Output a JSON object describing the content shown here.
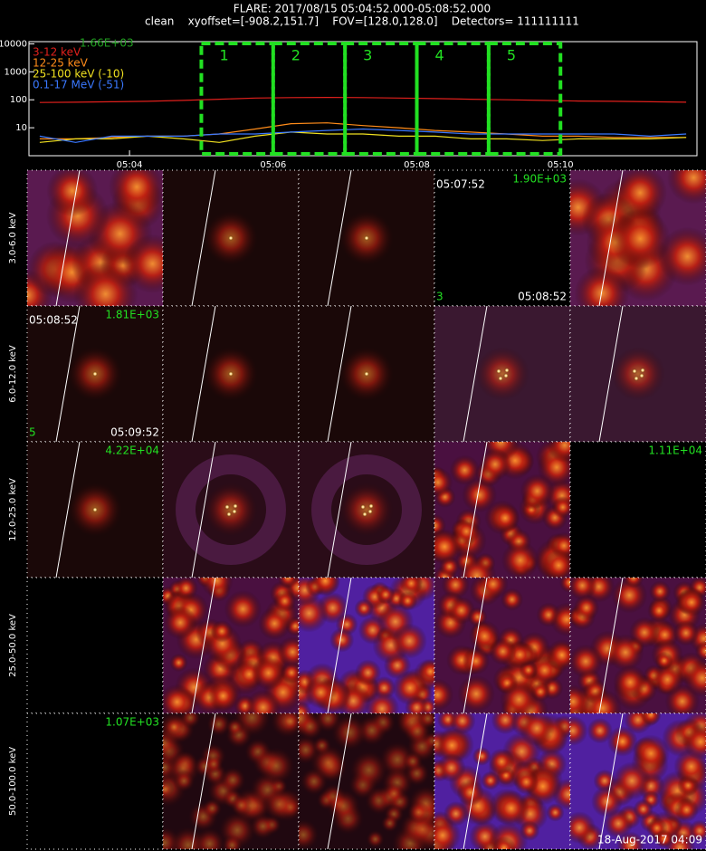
{
  "header": {
    "title": "FLARE: 2017/08/15 05:04:52.000-05:08:52.000",
    "subtitle": "clean    xyoffset=[-908.2,151.7]    FOV=[128.0,128.0]    Detectors= 111111111"
  },
  "chart_data": {
    "type": "line",
    "annotation": "1.66E+03",
    "log_scale": true,
    "x": [
      2.75,
      3.25,
      3.75,
      4.25,
      4.75,
      5.25,
      5.75,
      6.25,
      6.75,
      7.25,
      7.75,
      8.25,
      8.75,
      9.25,
      9.75,
      10.25,
      10.75,
      11.25,
      11.75
    ],
    "series": [
      {
        "name": "3-12 keV",
        "color": "#e0201c",
        "values": [
          80,
          82,
          85,
          88,
          95,
          105,
          115,
          120,
          122,
          120,
          115,
          110,
          105,
          100,
          95,
          90,
          88,
          85,
          82
        ]
      },
      {
        "name": "12-25 keV",
        "color": "#ff8c1a",
        "values": [
          4,
          4,
          4.5,
          5,
          5,
          6,
          9,
          14,
          15,
          12,
          10,
          8,
          7,
          6,
          5,
          5,
          4.5,
          4.5,
          4.5
        ]
      },
      {
        "name": "25-100 keV (-10)",
        "color": "#f0e020",
        "values": [
          3,
          4,
          4,
          5,
          4,
          3,
          5,
          7,
          6,
          6,
          5,
          5,
          4,
          4,
          3.5,
          4,
          4,
          4,
          4.5
        ]
      },
      {
        "name": "0.1-17 MeV (-51)",
        "color": "#3a78ff",
        "values": [
          5,
          3,
          5,
          5,
          5,
          6,
          6,
          7,
          8,
          9,
          8,
          7,
          6,
          6,
          6,
          6,
          6,
          5,
          6
        ]
      }
    ],
    "xlim": [
      2.6,
      11.9
    ],
    "xticks": [
      {
        "value": 4,
        "label": "05:04"
      },
      {
        "value": 6,
        "label": "05:06"
      },
      {
        "value": 8,
        "label": "05:08"
      },
      {
        "value": 10,
        "label": "05:10"
      }
    ],
    "ylim": [
      1,
      12000
    ],
    "yticks": [
      10,
      100,
      1000,
      10000
    ],
    "intervals": {
      "color": "#22e022",
      "labels": [
        "1",
        "2",
        "3",
        "4",
        "5"
      ],
      "edges": [
        5,
        6,
        7,
        8,
        9,
        10
      ]
    }
  },
  "panels": {
    "footer": "18-Aug-2017 04:09",
    "rows": [
      {
        "label": "3.0-6.0 keV",
        "cells": [
          null,
          null,
          null,
          {
            "peak": "1.90E+03",
            "start": "05:07:52",
            "end": "05:08:52",
            "index": "3"
          },
          null
        ]
      },
      {
        "label": "6.0-12.0 keV",
        "cells": [
          {
            "peak": "1.81E+03",
            "start": "05:08:52",
            "end": "05:09:52",
            "index": "5"
          },
          null,
          null,
          null,
          null
        ]
      },
      {
        "label": "12.0-25.0 keV",
        "cells": [
          {
            "peak": "4.22E+04"
          },
          null,
          null,
          null,
          {
            "peak": "1.11E+04"
          }
        ]
      },
      {
        "label": "25.0-50.0 keV",
        "cells": [
          null,
          null,
          null,
          null,
          null
        ]
      },
      {
        "label": "50.0-100.0 keV",
        "cells": [
          {
            "peak": "1.07E+03"
          },
          null,
          null,
          null,
          null
        ]
      }
    ]
  }
}
